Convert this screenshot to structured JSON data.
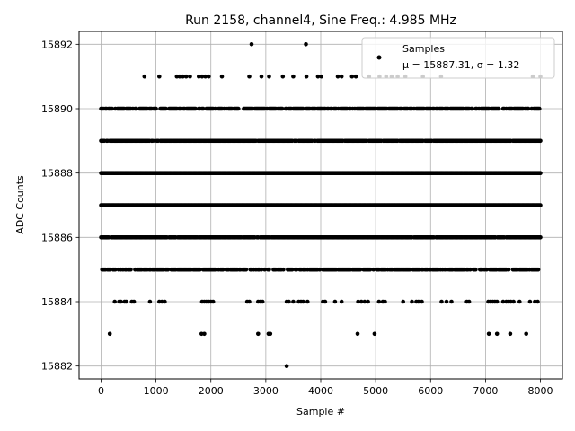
{
  "chart_data": {
    "type": "scatter",
    "title": "Run 2158, channel4, Sine Freq.: 4.985 MHz",
    "xlabel": "Sample #",
    "ylabel": "ADC Counts",
    "xlim": [
      -400,
      8400
    ],
    "ylim": [
      15881.6,
      15892.4
    ],
    "xticks": [
      0,
      1000,
      2000,
      3000,
      4000,
      5000,
      6000,
      7000,
      8000
    ],
    "yticks": [
      15882,
      15884,
      15886,
      15888,
      15890,
      15892
    ],
    "grid": true,
    "legend_position": "top-right",
    "marker_color": "#000000",
    "series": [
      {
        "name": "Samples",
        "label_line2": "μ = 15887.31, σ = 1.32",
        "points_by_level": [
          {
            "y": 15882,
            "x": [
              3380
            ]
          },
          {
            "y": 15883,
            "x": [
              160,
              1830,
              1880,
              2860,
              3050,
              3080,
              4670,
              4980,
              7060,
              7210,
              7450,
              7740
            ]
          },
          {
            "y": 15884,
            "x": [
              250,
              330,
              360,
              430,
              460,
              560,
              600,
              890,
              1060,
              1110,
              1160,
              1840,
              1880,
              1920,
              1960,
              2000,
              2040,
              2660,
              2700,
              2860,
              2900,
              2940,
              3380,
              3420,
              3500,
              3600,
              3640,
              3680,
              3760,
              4040,
              4080,
              4260,
              4380,
              4680,
              4740,
              4800,
              4860,
              5060,
              5130,
              5170,
              5500,
              5660,
              5740,
              5780,
              5840,
              6200,
              6290,
              6380,
              6660,
              6700,
              7050,
              7090,
              7130,
              7170,
              7210,
              7320,
              7380,
              7420,
              7460,
              7510,
              7620,
              7810,
              7900,
              7950
            ]
          },
          {
            "y": 15885,
            "density": 0.7
          },
          {
            "y": 15886,
            "density": 0.97
          },
          {
            "y": 15887,
            "density": 1.0
          },
          {
            "y": 15888,
            "density": 1.0
          },
          {
            "y": 15889,
            "density": 0.97
          },
          {
            "y": 15890,
            "density": 0.75
          },
          {
            "y": 15891,
            "x": [
              790,
              1060,
              1380,
              1430,
              1490,
              1550,
              1620,
              1780,
              1840,
              1900,
              1960,
              2200,
              2700,
              2920,
              3060,
              3310,
              3500,
              3740,
              3950,
              4010,
              4310,
              4380,
              4570,
              4640,
              4880,
              5070,
              5190,
              5290,
              5400,
              5540,
              5860,
              6190,
              7860,
              8000
            ]
          },
          {
            "y": 15892,
            "x": [
              2740,
              3730
            ]
          }
        ]
      }
    ]
  }
}
